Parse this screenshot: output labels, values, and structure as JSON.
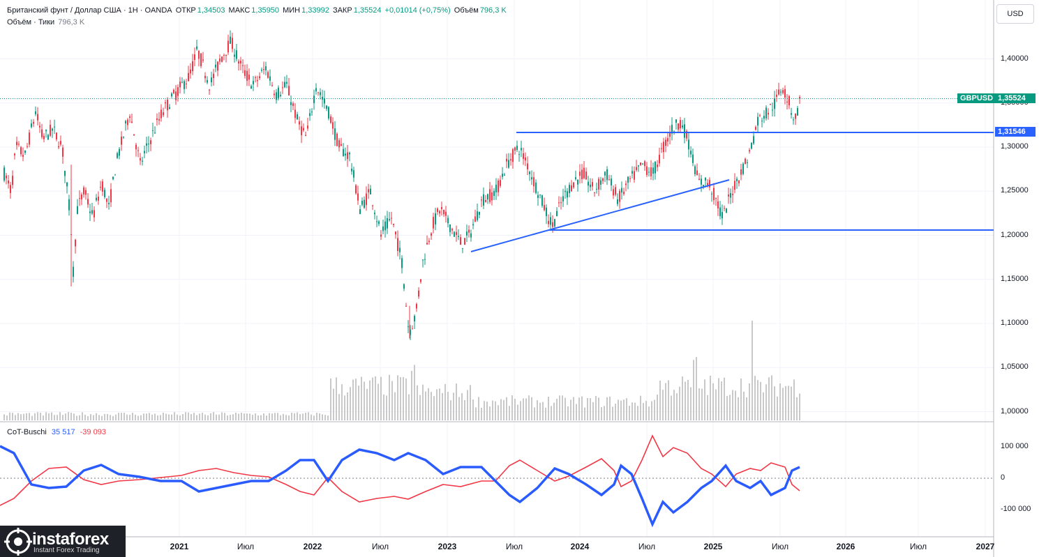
{
  "header": {
    "symbol_line": "Британский фунт / Доллар США · 1Н · OANDA",
    "open_label": "ОТКР",
    "open_value": "1,34503",
    "high_label": "МАКС",
    "high_value": "1,35950",
    "low_label": "МИН",
    "low_value": "1,33992",
    "close_label": "ЗАКР",
    "close_value": "1,35524",
    "change": "+0,01014 (+0,75%)",
    "volume_label": "Объём",
    "volume_value": "796,3 K",
    "line2_label": "Объём · Тики",
    "line2_value": "796,3 K"
  },
  "currency_button": "USD",
  "price_axis": {
    "ticks": [
      "1,40000",
      "1,35000",
      "1,30000",
      "1,25000",
      "1,20000",
      "1,15000",
      "1,10000",
      "1,05000",
      "1,00000"
    ],
    "current_symbol": "GBPUSD",
    "current_price": "1,35524",
    "level_price": "1,31546"
  },
  "cot_axis": {
    "ticks": [
      "100 000",
      "0",
      "-100 000"
    ]
  },
  "time_axis": {
    "ticks": [
      "2021",
      "Июл",
      "2022",
      "Июл",
      "2023",
      "Июл",
      "2024",
      "Июл",
      "2025",
      "Июл",
      "2026",
      "Июл",
      "2027"
    ],
    "partial_tick": "Июл"
  },
  "indicator": {
    "name": "CoT-Buschi",
    "value1": "35 517",
    "value2": "-39 093"
  },
  "logo": {
    "brand": "instaforex",
    "tagline": "Instant Forex Trading"
  },
  "colors": {
    "up": "#089981",
    "down": "#f23645",
    "trendline": "#2962ff",
    "cot_blue": "#2a5bff",
    "cot_red": "#f23645",
    "volume": "#c8c8c8"
  },
  "chart_data": {
    "type": "candlestick",
    "symbol": "GBPUSD",
    "timeframe": "1H",
    "price_range": [
      0.99,
      1.43
    ],
    "current_price": 1.35524,
    "horizontal_levels": [
      1.31546,
      1.205
    ],
    "trendline": {
      "from": [
        "2023-03",
        1.18
      ],
      "to": [
        "2025-03",
        1.262
      ]
    },
    "monthly_close_approx": [
      {
        "d": "2020-08",
        "c": 1.31
      },
      {
        "d": "2020-11",
        "c": 1.33
      },
      {
        "d": "2021-01",
        "c": 1.37
      },
      {
        "d": "2021-05",
        "c": 1.42
      },
      {
        "d": "2021-09",
        "c": 1.37
      },
      {
        "d": "2022-01",
        "c": 1.34
      },
      {
        "d": "2022-05",
        "c": 1.25
      },
      {
        "d": "2022-09",
        "c": 1.08
      },
      {
        "d": "2022-12",
        "c": 1.21
      },
      {
        "d": "2023-07",
        "c": 1.3
      },
      {
        "d": "2023-10",
        "c": 1.21
      },
      {
        "d": "2024-03",
        "c": 1.26
      },
      {
        "d": "2024-09",
        "c": 1.34
      },
      {
        "d": "2025-01",
        "c": 1.22
      },
      {
        "d": "2025-06",
        "c": 1.37
      },
      {
        "d": "2025-08",
        "c": 1.355
      }
    ],
    "cot_indicator": {
      "name": "CoT-Buschi",
      "series": [
        {
          "name": "blue",
          "last": 35517
        },
        {
          "name": "red",
          "last": -39093
        }
      ],
      "range": [
        -150000,
        150000
      ]
    }
  }
}
